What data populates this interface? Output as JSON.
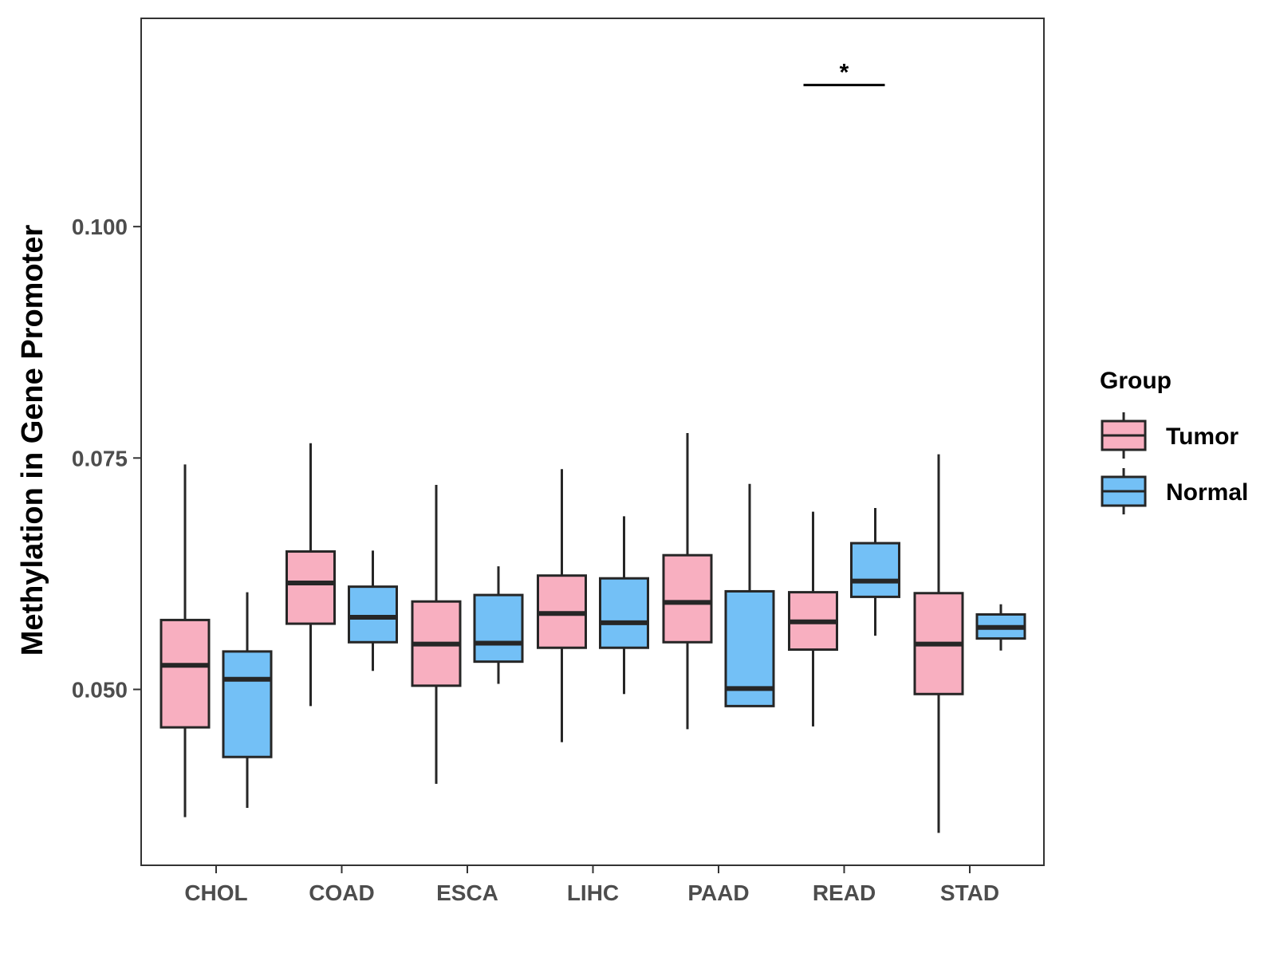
{
  "chart_data": {
    "type": "box",
    "title": "",
    "xlabel": "",
    "ylabel": "Methylation in Gene Promoter",
    "ylim": [
      0.031,
      0.1225
    ],
    "yticks": [
      0.05,
      0.075,
      0.1
    ],
    "ytick_labels": [
      "0.050",
      "0.075",
      "0.100"
    ],
    "categories": [
      "CHOL",
      "COAD",
      "ESCA",
      "LIHC",
      "PAAD",
      "READ",
      "STAD"
    ],
    "legend": {
      "title": "Group",
      "position": "right",
      "entries": [
        {
          "name": "Tumor",
          "color": "#F8AFC0"
        },
        {
          "name": "Normal",
          "color": "#73C0F6"
        }
      ]
    },
    "grid": false,
    "series": [
      {
        "name": "Tumor",
        "color": "#F8AFC0",
        "boxes": [
          {
            "whisker_low": 0.0362,
            "q1": 0.0459,
            "median": 0.0526,
            "q3": 0.0575,
            "whisker_high": 0.0743
          },
          {
            "whisker_low": 0.0482,
            "q1": 0.0571,
            "median": 0.0615,
            "q3": 0.0649,
            "whisker_high": 0.0766
          },
          {
            "whisker_low": 0.0398,
            "q1": 0.0504,
            "median": 0.0549,
            "q3": 0.0595,
            "whisker_high": 0.0721
          },
          {
            "whisker_low": 0.0443,
            "q1": 0.0545,
            "median": 0.0582,
            "q3": 0.0623,
            "whisker_high": 0.0738
          },
          {
            "whisker_low": 0.0457,
            "q1": 0.0551,
            "median": 0.0594,
            "q3": 0.0645,
            "whisker_high": 0.0777
          },
          {
            "whisker_low": 0.046,
            "q1": 0.0543,
            "median": 0.0573,
            "q3": 0.0605,
            "whisker_high": 0.0692
          },
          {
            "whisker_low": 0.0345,
            "q1": 0.0495,
            "median": 0.0549,
            "q3": 0.0604,
            "whisker_high": 0.0754
          }
        ]
      },
      {
        "name": "Normal",
        "color": "#73C0F6",
        "boxes": [
          {
            "whisker_low": 0.0372,
            "q1": 0.0427,
            "median": 0.0511,
            "q3": 0.0541,
            "whisker_high": 0.0605
          },
          {
            "whisker_low": 0.052,
            "q1": 0.0551,
            "median": 0.0578,
            "q3": 0.0611,
            "whisker_high": 0.065
          },
          {
            "whisker_low": 0.0506,
            "q1": 0.053,
            "median": 0.055,
            "q3": 0.0602,
            "whisker_high": 0.0633
          },
          {
            "whisker_low": 0.0495,
            "q1": 0.0545,
            "median": 0.0572,
            "q3": 0.062,
            "whisker_high": 0.0687
          },
          {
            "whisker_low": 0.0481,
            "q1": 0.0482,
            "median": 0.0501,
            "q3": 0.0606,
            "whisker_high": 0.0722
          },
          {
            "whisker_low": 0.0558,
            "q1": 0.06,
            "median": 0.0617,
            "q3": 0.0658,
            "whisker_high": 0.0696
          },
          {
            "whisker_low": 0.0542,
            "q1": 0.0555,
            "median": 0.0567,
            "q3": 0.0581,
            "whisker_high": 0.0592
          }
        ]
      }
    ],
    "annotations": [
      {
        "category": "READ",
        "text": "*",
        "y": 0.1153
      }
    ]
  }
}
